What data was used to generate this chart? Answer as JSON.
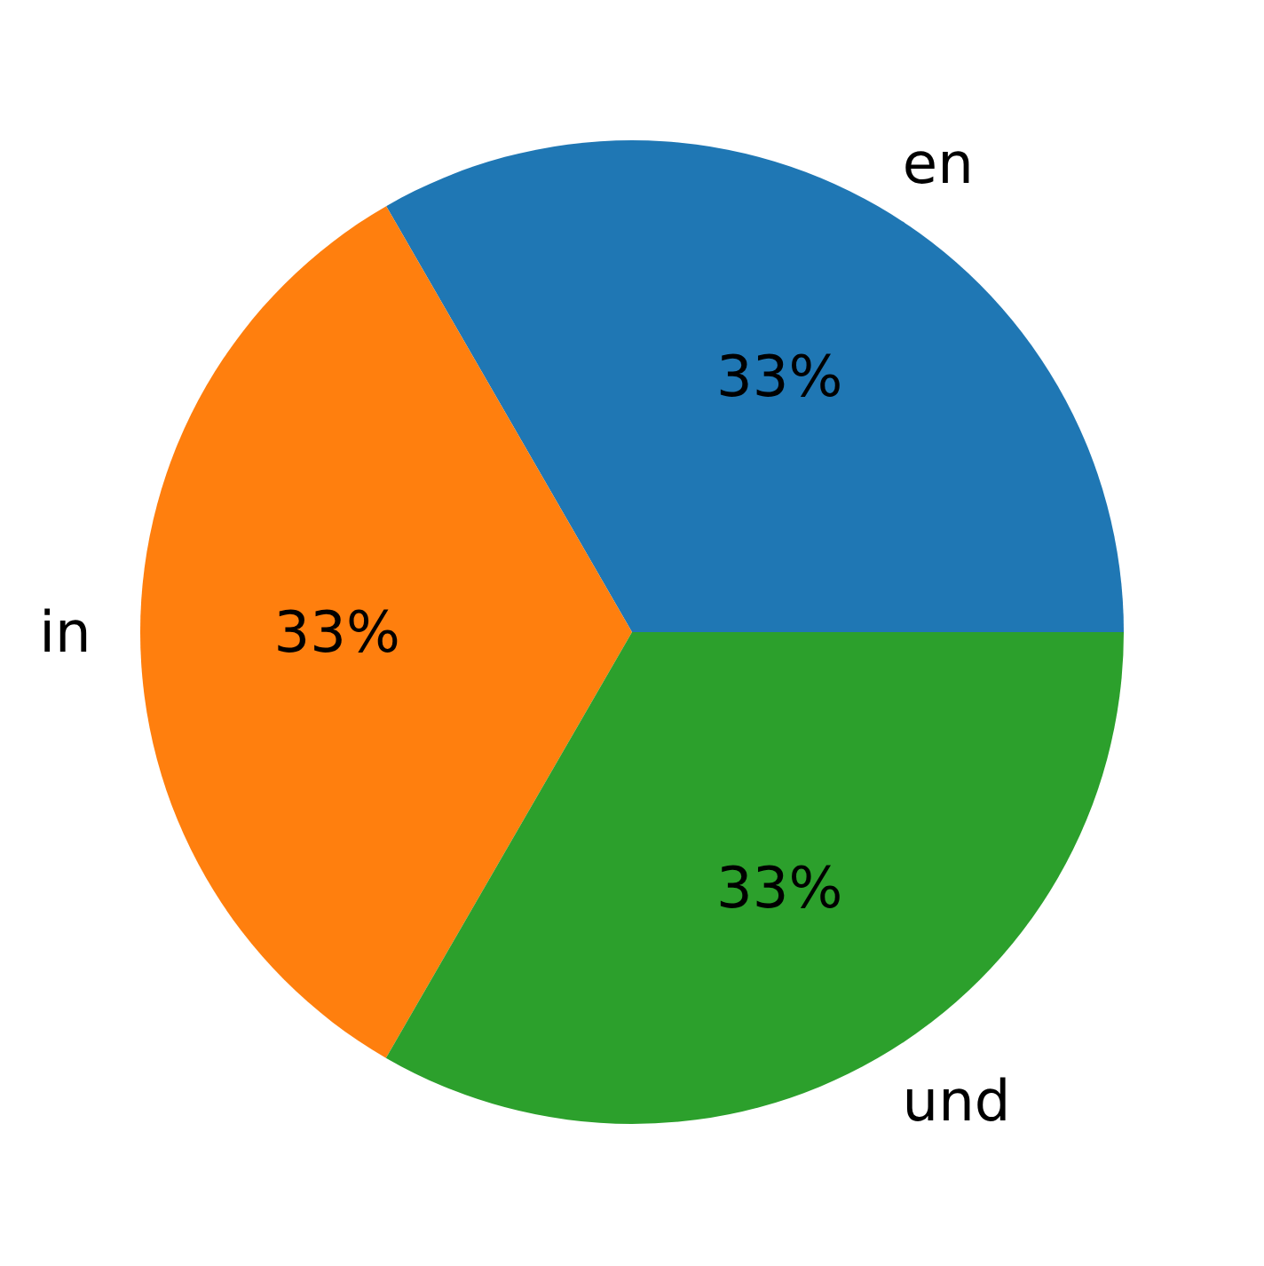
{
  "chart_data": {
    "type": "pie",
    "categories": [
      "en",
      "in",
      "und"
    ],
    "values": [
      33.33,
      33.33,
      33.34
    ],
    "colors": [
      "#1f77b4",
      "#ff7f0e",
      "#2ca02c"
    ],
    "value_labels": [
      "33%",
      "33%",
      "33%"
    ]
  }
}
